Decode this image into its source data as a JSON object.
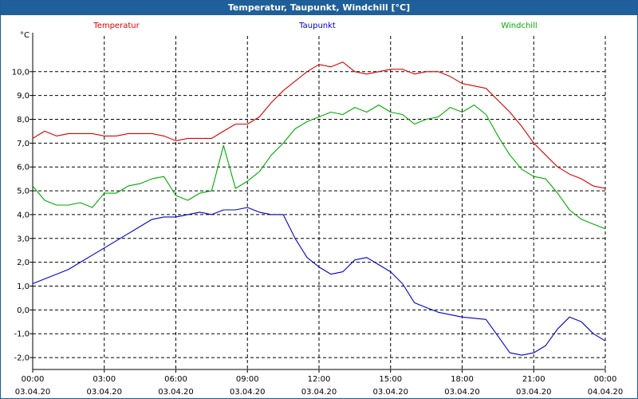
{
  "window": {
    "title": "Temperatur, Taupunkt, Windchill [°C]"
  },
  "chart_data": {
    "type": "line",
    "title": "Temperatur, Taupunkt, Windchill [°C]",
    "ylabel": "°C",
    "xlabel": "",
    "ylim": [
      -2.5,
      11.5
    ],
    "xlim": [
      0,
      24
    ],
    "yticks": [
      -2.0,
      -1.0,
      0.0,
      1.0,
      2.0,
      3.0,
      4.0,
      5.0,
      6.0,
      7.0,
      8.0,
      9.0,
      10.0
    ],
    "ytick_labels": [
      "-2,0",
      "-1,0",
      "0,0",
      "1,0",
      "2,0",
      "3,0",
      "4,0",
      "5,0",
      "6,0",
      "7,0",
      "8,0",
      "9,0",
      "10,0"
    ],
    "xticks": [
      0,
      3,
      6,
      9,
      12,
      15,
      18,
      21,
      24
    ],
    "xtick_time_labels": [
      "00:00",
      "03:00",
      "06:00",
      "09:00",
      "12:00",
      "15:00",
      "18:00",
      "21:00",
      "00:00"
    ],
    "xtick_date_labels": [
      "03.04.20",
      "03.04.20",
      "03.04.20",
      "03.04.20",
      "03.04.20",
      "03.04.20",
      "03.04.20",
      "03.04.20",
      "04.04.20"
    ],
    "grid": true,
    "series": [
      {
        "name": "Temperatur",
        "color": "#dd0000",
        "legend_pos": "left",
        "x": [
          0,
          0.5,
          1,
          1.5,
          2,
          2.5,
          3,
          3.5,
          4,
          4.5,
          5,
          5.5,
          6,
          6.5,
          7,
          7.5,
          8,
          8.5,
          9,
          9.5,
          10,
          10.5,
          11,
          11.5,
          12,
          12.5,
          13,
          13.5,
          14,
          14.5,
          15,
          15.5,
          16,
          16.5,
          17,
          17.5,
          18,
          18.5,
          19,
          19.5,
          20,
          20.5,
          21,
          21.5,
          22,
          22.5,
          23,
          23.5,
          24
        ],
        "y": [
          7.2,
          7.5,
          7.3,
          7.4,
          7.4,
          7.4,
          7.3,
          7.3,
          7.4,
          7.4,
          7.4,
          7.3,
          7.1,
          7.2,
          7.2,
          7.2,
          7.5,
          7.8,
          7.8,
          8.1,
          8.7,
          9.2,
          9.6,
          10.0,
          10.3,
          10.2,
          10.4,
          10.0,
          9.9,
          10.0,
          10.1,
          10.1,
          9.9,
          10.0,
          10.0,
          9.8,
          9.5,
          9.4,
          9.3,
          8.8,
          8.3,
          7.7,
          7.0,
          6.5,
          6.0,
          5.7,
          5.5,
          5.2,
          5.1
        ]
      },
      {
        "name": "Taupunkt",
        "color": "#0000cc",
        "legend_pos": "center",
        "x": [
          0,
          0.5,
          1,
          1.5,
          2,
          2.5,
          3,
          3.5,
          4,
          4.5,
          5,
          5.5,
          6,
          6.5,
          7,
          7.5,
          8,
          8.5,
          9,
          9.5,
          10,
          10.5,
          11,
          11.5,
          12,
          12.5,
          13,
          13.5,
          14,
          14.5,
          15,
          15.5,
          16,
          16.5,
          17,
          17.5,
          18,
          18.5,
          19,
          19.5,
          20,
          20.5,
          21,
          21.5,
          22,
          22.5,
          23,
          23.5,
          24
        ],
        "y": [
          1.1,
          1.3,
          1.5,
          1.7,
          2.0,
          2.3,
          2.6,
          2.9,
          3.2,
          3.5,
          3.8,
          3.9,
          3.9,
          4.0,
          4.1,
          4.0,
          4.2,
          4.2,
          4.3,
          4.1,
          4.0,
          4.0,
          3.0,
          2.2,
          1.8,
          1.5,
          1.6,
          2.1,
          2.2,
          1.9,
          1.6,
          1.1,
          0.3,
          0.1,
          -0.1,
          -0.2,
          -0.3,
          -0.35,
          -0.4,
          -1.1,
          -1.8,
          -1.9,
          -1.8,
          -1.5,
          -0.8,
          -0.3,
          -0.5,
          -1.0,
          -1.3
        ]
      },
      {
        "name": "Windchill",
        "color": "#00aa00",
        "legend_pos": "right",
        "x": [
          0,
          0.5,
          1,
          1.5,
          2,
          2.5,
          3,
          3.5,
          4,
          4.5,
          5,
          5.5,
          6,
          6.5,
          7,
          7.5,
          8,
          8.5,
          9,
          9.5,
          10,
          10.5,
          11,
          11.5,
          12,
          12.5,
          13,
          13.5,
          14,
          14.5,
          15,
          15.5,
          16,
          16.5,
          17,
          17.5,
          18,
          18.5,
          19,
          19.5,
          20,
          20.5,
          21,
          21.5,
          22,
          22.5,
          23,
          23.5,
          24
        ],
        "y": [
          5.2,
          4.6,
          4.4,
          4.4,
          4.5,
          4.3,
          4.9,
          4.9,
          5.2,
          5.3,
          5.5,
          5.6,
          4.8,
          4.6,
          4.9,
          5.0,
          6.9,
          5.1,
          5.4,
          5.8,
          6.5,
          7.0,
          7.6,
          7.9,
          8.1,
          8.3,
          8.2,
          8.5,
          8.3,
          8.6,
          8.3,
          8.2,
          7.8,
          8.0,
          8.1,
          8.5,
          8.3,
          8.6,
          8.2,
          7.3,
          6.5,
          5.9,
          5.6,
          5.5,
          4.9,
          4.2,
          3.8,
          3.6,
          3.4
        ]
      }
    ]
  }
}
